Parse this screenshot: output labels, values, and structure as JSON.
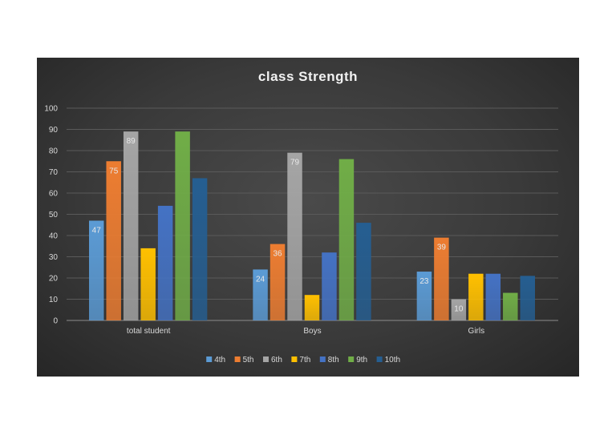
{
  "chart_data": {
    "type": "bar",
    "title": "class Strength",
    "categories": [
      "total student",
      "Boys",
      "Girls"
    ],
    "ylim": [
      0,
      100
    ],
    "yticks": [
      0,
      10,
      20,
      30,
      40,
      50,
      60,
      70,
      80,
      90,
      100
    ],
    "grid": true,
    "legend_position": "bottom",
    "series": [
      {
        "name": "4th",
        "color": "#5b9bd5",
        "values": [
          47,
          24,
          23
        ],
        "labels": [
          "47",
          "24",
          "23"
        ]
      },
      {
        "name": "5th",
        "color": "#ed7d31",
        "values": [
          75,
          36,
          39
        ],
        "labels": [
          "75",
          "36",
          "39"
        ]
      },
      {
        "name": "6th",
        "color": "#a5a5a5",
        "values": [
          89,
          79,
          10
        ],
        "labels": [
          "89",
          "79",
          "10"
        ]
      },
      {
        "name": "7th",
        "color": "#ffc000",
        "values": [
          34,
          12,
          22
        ],
        "labels": [
          "",
          "",
          ""
        ]
      },
      {
        "name": "8th",
        "color": "#4472c4",
        "values": [
          54,
          32,
          22
        ],
        "labels": [
          "",
          "",
          ""
        ]
      },
      {
        "name": "9th",
        "color": "#70ad47",
        "values": [
          89,
          76,
          13
        ],
        "labels": [
          "",
          "",
          ""
        ]
      },
      {
        "name": "10th",
        "color": "#255e91",
        "values": [
          67,
          46,
          21
        ],
        "labels": [
          "",
          "",
          ""
        ]
      }
    ]
  }
}
